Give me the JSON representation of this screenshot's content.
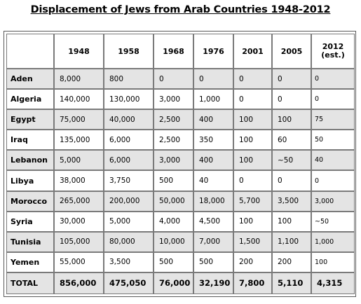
{
  "title": "Displacement of Jews from Arab Countries 1948-2012",
  "chart_data": {
    "type": "table",
    "title": "Displacement of Jews from Arab Countries 1948-2012",
    "columns": [
      "1948",
      "1958",
      "1968",
      "1976",
      "2001",
      "2005",
      "2012\n(est.)"
    ],
    "rows": [
      {
        "country": "Aden",
        "values": [
          "8,000",
          "800",
          "0",
          "0",
          "0",
          "0",
          "0"
        ]
      },
      {
        "country": "Algeria",
        "values": [
          "140,000",
          "130,000",
          "3,000",
          "1,000",
          "0",
          "0",
          "0"
        ]
      },
      {
        "country": "Egypt",
        "values": [
          "75,000",
          "40,000",
          "2,500",
          "400",
          "100",
          "100",
          "75"
        ]
      },
      {
        "country": "Iraq",
        "values": [
          "135,000",
          "6,000",
          "2,500",
          "350",
          "100",
          "60",
          "50"
        ]
      },
      {
        "country": "Lebanon",
        "values": [
          "5,000",
          "6,000",
          "3,000",
          "400",
          "100",
          "~50",
          "40"
        ]
      },
      {
        "country": "Libya",
        "values": [
          "38,000",
          "3,750",
          "500",
          "40",
          "0",
          "0",
          "0"
        ]
      },
      {
        "country": "Morocco",
        "values": [
          "265,000",
          "200,000",
          "50,000",
          "18,000",
          "5,700",
          "3,500",
          "3,000"
        ]
      },
      {
        "country": "Syria",
        "values": [
          "30,000",
          "5,000",
          "4,000",
          "4,500",
          "100",
          "100",
          "~50"
        ]
      },
      {
        "country": "Tunisia",
        "values": [
          "105,000",
          "80,000",
          "10,000",
          "7,000",
          "1,500",
          "1,100",
          "1,000"
        ]
      },
      {
        "country": "Yemen",
        "values": [
          "55,000",
          "3,500",
          "500",
          "500",
          "200",
          "200",
          "100"
        ]
      }
    ],
    "total": {
      "label": "TOTAL",
      "values": [
        "856,000",
        "475,050",
        "76,000",
        "32,190",
        "7,800",
        "5,110",
        "4,315"
      ]
    },
    "shaded_color": "#e4e4e4"
  }
}
